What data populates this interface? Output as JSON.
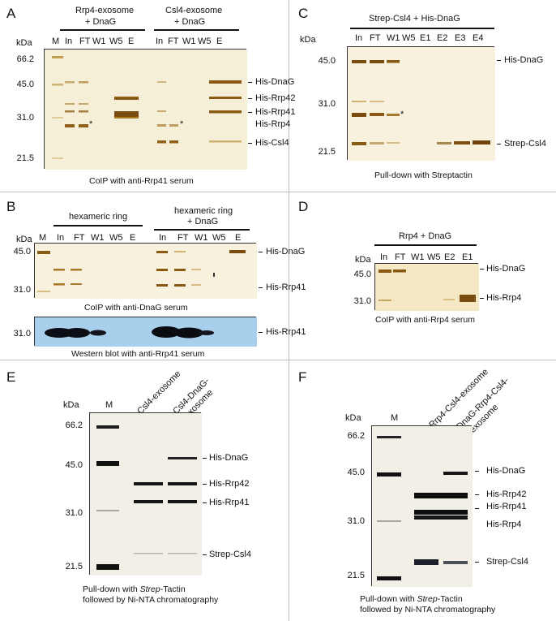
{
  "panelA": {
    "letter": "A",
    "group1": "Rrp4-exosome",
    "group1b": "+ DnaG",
    "group2": "Csl4-exosome",
    "group2b": "+ DnaG",
    "kda": "kDa",
    "lanes": [
      "M",
      "In",
      "FT",
      "W1",
      "W5",
      "E",
      "In",
      "FT",
      "W1",
      "W5",
      "E"
    ],
    "markers": [
      "66.2",
      "45.0",
      "31.0",
      "21.5"
    ],
    "bands": [
      "His-DnaG",
      "His-Rrp42",
      "His-Rrp41",
      "His-Rrp4",
      "His-Csl4"
    ],
    "star": "*",
    "caption": "CoIP with anti-Rrp41 serum"
  },
  "panelB": {
    "letter": "B",
    "group1": "hexameric ring",
    "group2": "hexameric ring",
    "group2b": "+ DnaG",
    "kda": "kDa",
    "lanes": [
      "M",
      "In",
      "FT",
      "W1",
      "W5",
      "E",
      "In",
      "FT",
      "W1",
      "W5",
      "E"
    ],
    "markers": [
      "45.0",
      "31.0"
    ],
    "bands": [
      "His-DnaG",
      "His-Rrp41"
    ],
    "caption": "CoIP with anti-DnaG serum",
    "wb_marker": "31.0",
    "wb_band": "His-Rrp41",
    "wb_caption": "Western blot with anti-Rrp41 serum"
  },
  "panelC": {
    "letter": "C",
    "group": "Strep-Csl4 + His-DnaG",
    "kda": "kDa",
    "lanes": [
      "In",
      "FT",
      "W1",
      "W5",
      "E1",
      "E2",
      "E3",
      "E4"
    ],
    "markers": [
      "45.0",
      "31.0",
      "21.5"
    ],
    "bands": [
      "His-DnaG",
      "Strep-Csl4"
    ],
    "star": "*",
    "caption": "Pull-down with Streptactin"
  },
  "panelD": {
    "letter": "D",
    "group": "Rrp4 + DnaG",
    "kda": "kDa",
    "lanes": [
      "In",
      "FT",
      "W1",
      "W5",
      "E2",
      "E1"
    ],
    "markers": [
      "45.0",
      "31.0"
    ],
    "bands": [
      "His-DnaG",
      "His-Rrp4"
    ],
    "caption": "CoIP with anti-Rrp4 serum"
  },
  "panelE": {
    "letter": "E",
    "kda": "kDa",
    "lane_m": "M",
    "lane1": "Csl4-exosome",
    "lane2a": "Csl4-DnaG-",
    "lane2b": "exosome",
    "markers": [
      "66.2",
      "45.0",
      "31.0",
      "21.5"
    ],
    "bands": [
      "His-DnaG",
      "His-Rrp42",
      "His-Rrp41",
      "Strep-Csl4"
    ],
    "caption1_pre": "Pull-down with ",
    "caption1_em": "Strep",
    "caption1_post": "-Tactin",
    "caption2": "followed by Ni-NTA chromatography"
  },
  "panelF": {
    "letter": "F",
    "kda": "kDa",
    "lane_m": "M",
    "lane1": "Rrp4-Csl4-exosome",
    "lane2a": "DnaG-Rrp4-Csl4-",
    "lane2b": "exosome",
    "markers": [
      "66.2",
      "45.0",
      "31.0",
      "21.5"
    ],
    "bands": [
      "His-DnaG",
      "His-Rrp42",
      "His-Rrp41",
      "His-Rrp4",
      "Strep-Csl4"
    ],
    "caption1_pre": "Pull-down with ",
    "caption1_em": "Strep",
    "caption1_post": "-Tactin",
    "caption2": "followed by Ni-NTA chromatography"
  }
}
